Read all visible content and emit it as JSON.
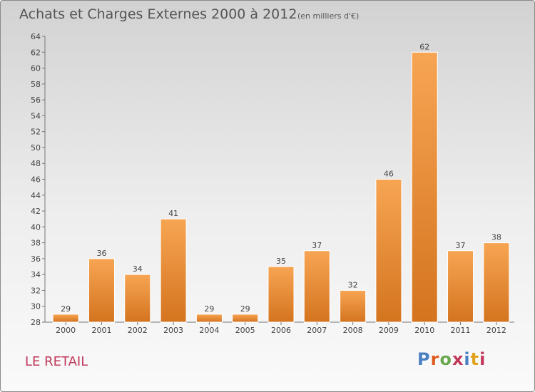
{
  "header": {
    "title": "Achats et Charges Externes 2000 à 2012",
    "subtitle": "(en milliers d'€)"
  },
  "footer": {
    "place": "LE RETAIL",
    "logo_text": "Proxiti"
  },
  "colors": {
    "bar_light": "#f7a553",
    "bar_dark": "#d4741f",
    "place_text": "#c0385a",
    "logo_letters": [
      "#4a7fc1",
      "#e05a1e",
      "#6aa84f",
      "#c0385a",
      "#4a7fc1",
      "#e0a11e",
      "#c0385a"
    ]
  },
  "chart_data": {
    "type": "bar",
    "categories": [
      "2000",
      "2001",
      "2002",
      "2003",
      "2004",
      "2005",
      "2006",
      "2007",
      "2008",
      "2009",
      "2010",
      "2011",
      "2012"
    ],
    "values": [
      29,
      36,
      34,
      41,
      29,
      29,
      35,
      37,
      32,
      46,
      62,
      37,
      38
    ],
    "data_labels": [
      "29",
      "36",
      "34",
      "41",
      "29",
      "29",
      "35",
      "37",
      "32",
      "46",
      "62",
      "37",
      "38"
    ],
    "yticks": [
      "28",
      "30",
      "32",
      "34",
      "36",
      "38",
      "40",
      "42",
      "44",
      "46",
      "48",
      "50",
      "52",
      "54",
      "56",
      "58",
      "60",
      "62",
      "64"
    ],
    "ylim": [
      28,
      64
    ],
    "title": "Achats et Charges Externes 2000 à 2012",
    "xlabel": "",
    "ylabel": "",
    "grid": false,
    "legend": "none"
  }
}
